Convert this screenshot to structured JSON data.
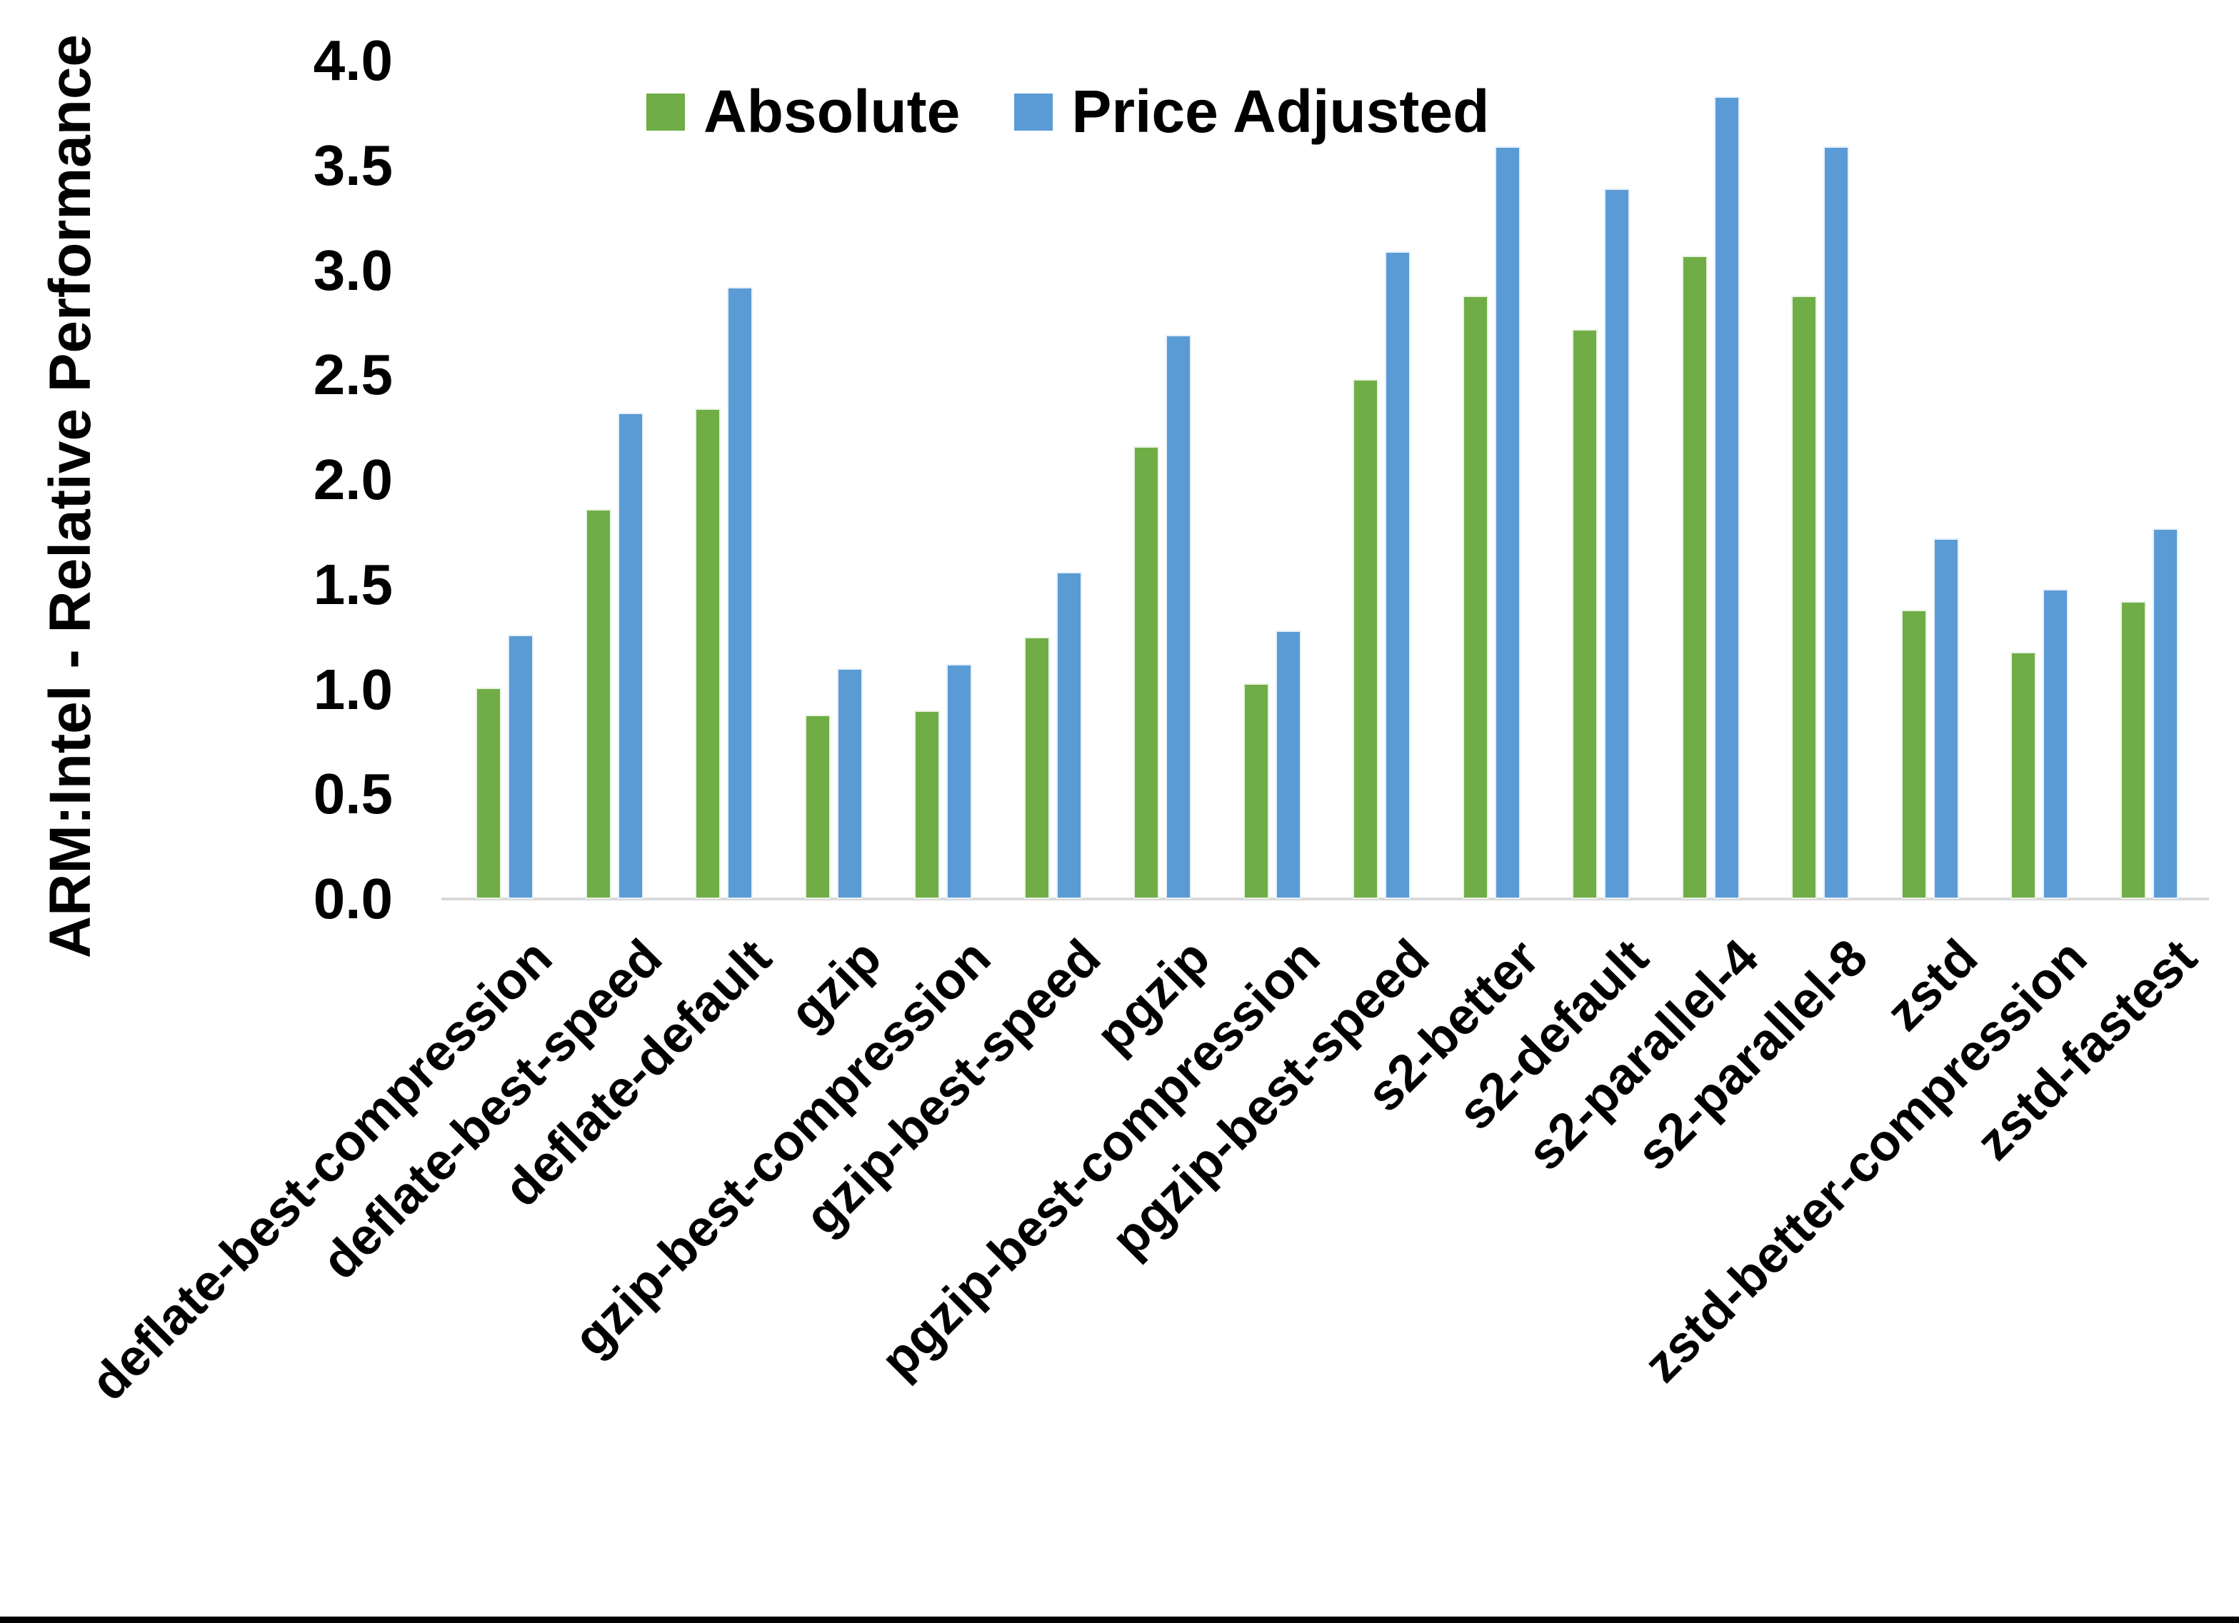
{
  "chart_data": {
    "type": "bar",
    "title": "",
    "xlabel": "",
    "ylabel": "ARM:Intel - Relative Performance",
    "ylim": [
      0.0,
      4.0
    ],
    "y_ticks": [
      "0.0",
      "0.5",
      "1.0",
      "1.5",
      "2.0",
      "2.5",
      "3.0",
      "3.5",
      "4.0"
    ],
    "grid": false,
    "legend_position": "top-center",
    "categories": [
      "deflate-best-compression",
      "deflate-best-speed",
      "deflate-default",
      "gzip",
      "gzip-best-compression",
      "gzip-best-speed",
      "pgzip",
      "pgzip-best-compression",
      "pgzip-best-speed",
      "s2-better",
      "s2-default",
      "s2-parallel-4",
      "s2-parallel-8",
      "zstd",
      "zstd-better-compression",
      "zstd-fastest"
    ],
    "series": [
      {
        "name": "Absolute",
        "color": "#70AD47",
        "values": [
          1.01,
          1.86,
          2.34,
          0.88,
          0.9,
          1.25,
          2.16,
          1.03,
          2.48,
          2.88,
          2.72,
          3.07,
          2.88,
          1.38,
          1.18,
          1.42
        ]
      },
      {
        "name": "Price Adjusted",
        "color": "#5B9BD5",
        "values": [
          1.26,
          2.32,
          2.92,
          1.1,
          1.12,
          1.56,
          2.69,
          1.28,
          3.09,
          3.59,
          3.39,
          3.83,
          3.59,
          1.72,
          1.48,
          1.77
        ]
      }
    ]
  },
  "colors": {
    "background": "#FFFFFF",
    "text": "#000000",
    "axis_line": "#D9D9D9",
    "bottom_bar": "#000000"
  }
}
